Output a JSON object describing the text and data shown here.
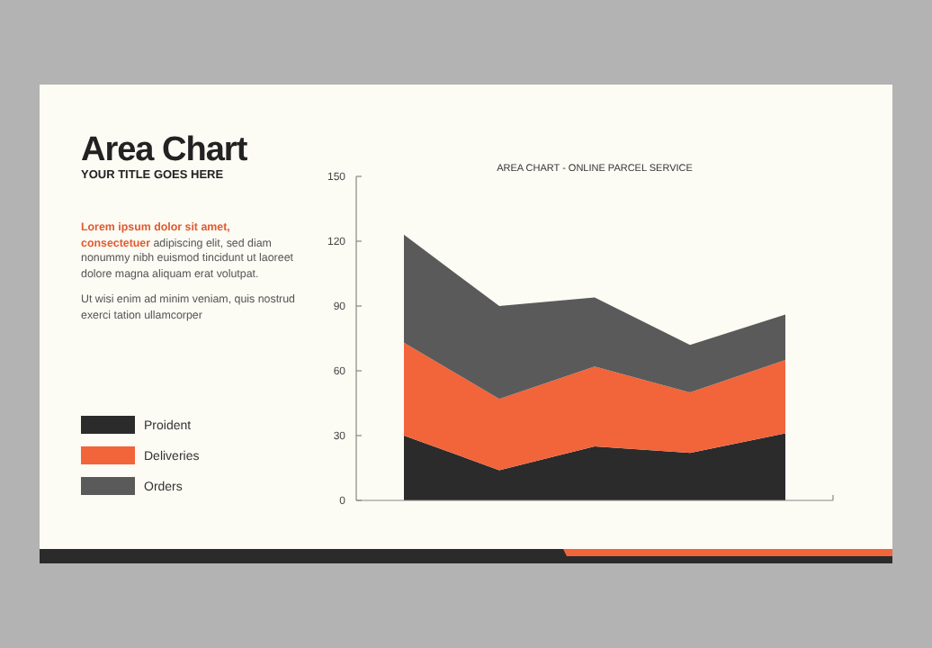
{
  "chart_data": {
    "type": "area",
    "title": "Area Chart",
    "subtitle": "YOUR TITLE GOES HERE",
    "annotations": [
      "AREA CHART - ONLINE PARCEL SERVICE",
      "Lorem ipsum dolor sit amet, consectetuer",
      "adipiscing elit, sed diam nonummy nibh euismod tincidunt ut laoreet dolore magna aliquam erat volutpat.",
      "Ut wisi enim ad minim veniam, quis nostrud exerci tation ullamcorper"
    ],
    "categories": [
      null,
      null,
      null,
      null,
      null
    ],
    "stacked": true,
    "series": [
      {
        "name": "Proident",
        "color": "#2b2b2b",
        "values": [
          30,
          14,
          25,
          22,
          31
        ]
      },
      {
        "name": "Deliveries",
        "color": "#f2643a",
        "values": [
          43,
          33,
          37,
          28,
          34
        ]
      },
      {
        "name": "Orders",
        "color": "#5a5a5a",
        "values": [
          50,
          43,
          32,
          22,
          21
        ]
      }
    ],
    "ylim": [
      0,
      150
    ],
    "yticks": [
      0,
      30,
      60,
      90,
      120,
      150
    ],
    "grid": false,
    "legend": "left"
  }
}
